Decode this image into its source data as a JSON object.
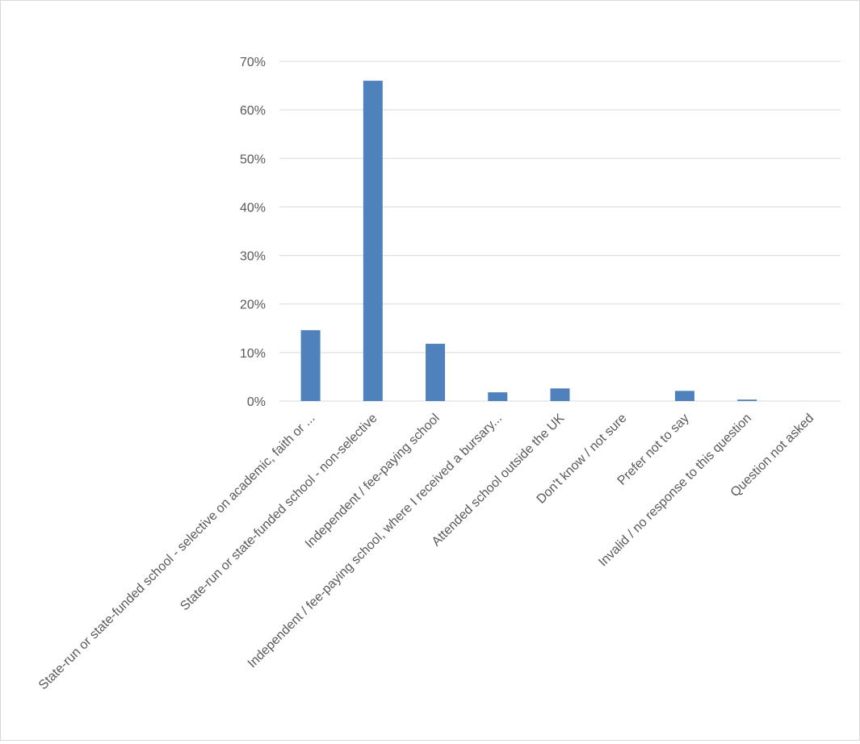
{
  "chart_data": {
    "type": "bar",
    "title": "",
    "xlabel": "",
    "ylabel": "",
    "ylim": [
      0,
      70
    ],
    "yticks": [
      "0%",
      "10%",
      "20%",
      "30%",
      "40%",
      "50%",
      "60%",
      "70%"
    ],
    "grid": true,
    "bar_color": "#4f81bd",
    "categories": [
      "State-run or state-funded school - selective on academic, faith or ...",
      "State-run or state-funded school - non-selective",
      "Independent / fee-paying school",
      "Independent / fee-paying school, where I received a bursary...",
      "Attended school outside the UK",
      "Don't know / not sure",
      "Prefer not to say",
      "Invalid / no response to this question",
      "Question not asked"
    ],
    "values": [
      14.6,
      66.0,
      11.8,
      1.8,
      2.6,
      0.0,
      2.1,
      0.3,
      0.0
    ]
  }
}
